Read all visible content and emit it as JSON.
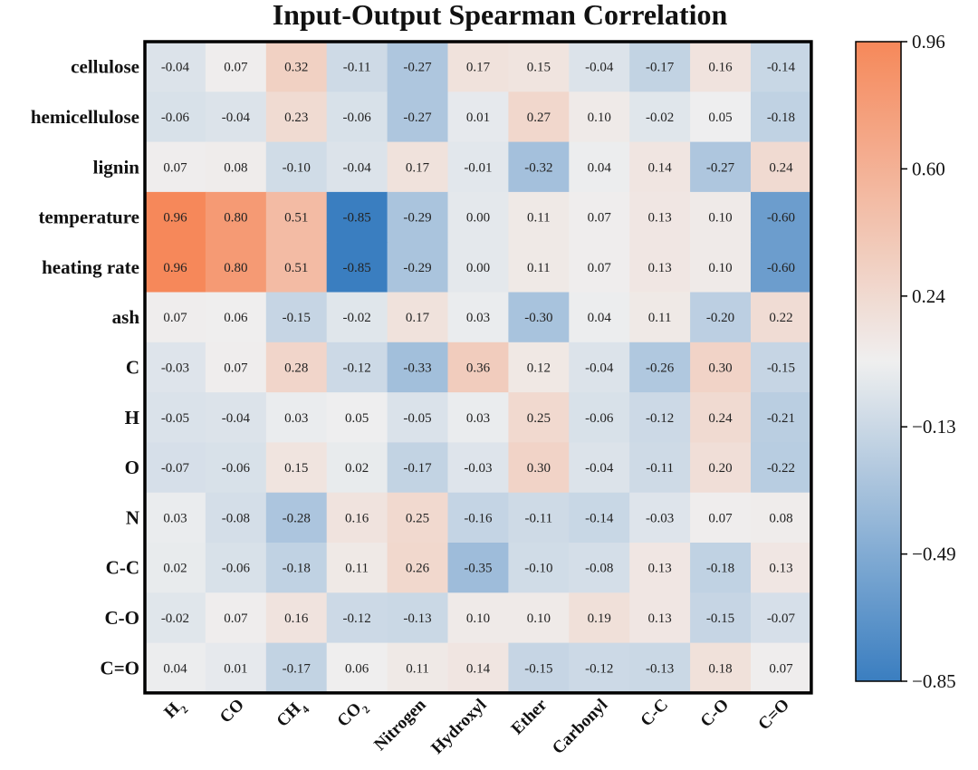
{
  "chart_data": {
    "type": "heatmap",
    "title": "Input-Output  Spearman Correlation",
    "rows": [
      "cellulose",
      "hemicellulose",
      "lignin",
      "temperature",
      "heating rate",
      "ash",
      "C",
      "H",
      "O",
      "N",
      "C-C",
      "C-O",
      "C=O"
    ],
    "columns": [
      {
        "base": "H",
        "sub": "2"
      },
      {
        "base": "CO",
        "sub": ""
      },
      {
        "base": "CH",
        "sub": "4"
      },
      {
        "base": "CO",
        "sub": "2"
      },
      {
        "base": "Nitrogen",
        "sub": ""
      },
      {
        "base": "Hydroxyl",
        "sub": ""
      },
      {
        "base": "Ether",
        "sub": ""
      },
      {
        "base": "Carbonyl",
        "sub": ""
      },
      {
        "base": "C-C",
        "sub": ""
      },
      {
        "base": "C-O",
        "sub": ""
      },
      {
        "base": "C=O",
        "sub": ""
      }
    ],
    "values": [
      [
        "-0.04",
        "0.07",
        "0.32",
        "-0.11",
        "-0.27",
        "0.17",
        "0.15",
        "-0.04",
        "-0.17",
        "0.16",
        "-0.14"
      ],
      [
        "-0.06",
        "-0.04",
        "0.23",
        "-0.06",
        "-0.27",
        "0.01",
        "0.27",
        "0.10",
        "-0.02",
        "0.05",
        "-0.18"
      ],
      [
        "0.07",
        "0.08",
        "-0.10",
        "-0.04",
        "0.17",
        "-0.01",
        "-0.32",
        "0.04",
        "0.14",
        "-0.27",
        "0.24"
      ],
      [
        "0.96",
        "0.80",
        "0.51",
        "-0.85",
        "-0.29",
        "0.00",
        "0.11",
        "0.07",
        "0.13",
        "0.10",
        "-0.60"
      ],
      [
        "0.96",
        "0.80",
        "0.51",
        "-0.85",
        "-0.29",
        "0.00",
        "0.11",
        "0.07",
        "0.13",
        "0.10",
        "-0.60"
      ],
      [
        "0.07",
        "0.06",
        "-0.15",
        "-0.02",
        "0.17",
        "0.03",
        "-0.30",
        "0.04",
        "0.11",
        "-0.20",
        "0.22"
      ],
      [
        "-0.03",
        "0.07",
        "0.28",
        "-0.12",
        "-0.33",
        "0.36",
        "0.12",
        "-0.04",
        "-0.26",
        "0.30",
        "-0.15"
      ],
      [
        "-0.05",
        "-0.04",
        "0.03",
        "0.05",
        "-0.05",
        "0.03",
        "0.25",
        "-0.06",
        "-0.12",
        "0.24",
        "-0.21"
      ],
      [
        "-0.07",
        "-0.06",
        "0.15",
        "0.02",
        "-0.17",
        "-0.03",
        "0.30",
        "-0.04",
        "-0.11",
        "0.20",
        "-0.22"
      ],
      [
        "0.03",
        "-0.08",
        "-0.28",
        "0.16",
        "0.25",
        "-0.16",
        "-0.11",
        "-0.14",
        "-0.03",
        "0.07",
        "0.08"
      ],
      [
        "0.02",
        "-0.06",
        "-0.18",
        "0.11",
        "0.26",
        "-0.35",
        "-0.10",
        "-0.08",
        "0.13",
        "-0.18",
        "0.13"
      ],
      [
        "-0.02",
        "0.07",
        "0.16",
        "-0.12",
        "-0.13",
        "0.10",
        "0.10",
        "0.19",
        "0.13",
        "-0.15",
        "-0.07"
      ],
      [
        "0.04",
        "0.01",
        "-0.17",
        "0.06",
        "0.11",
        "0.14",
        "-0.15",
        "-0.12",
        "-0.13",
        "0.18",
        "0.07"
      ]
    ],
    "colorbar": {
      "min": -0.85,
      "max": 0.96,
      "ticks": [
        "0.96",
        "0.60",
        "0.24",
        "−0.13",
        "−0.49",
        "−0.85"
      ],
      "tick_values": [
        0.96,
        0.6,
        0.24,
        -0.13,
        -0.49,
        -0.85
      ],
      "color_low": "#3a7ec0",
      "color_mid": "#efefef",
      "color_high": "#f6885a"
    }
  }
}
